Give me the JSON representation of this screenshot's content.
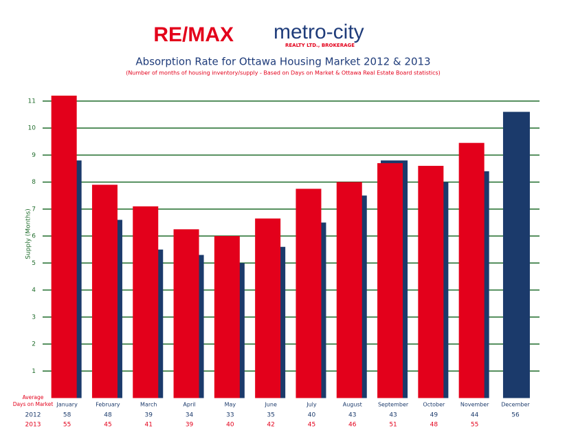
{
  "logo": {
    "brand": "RE/MAX",
    "name": "metro-city",
    "tagline": "REALTY LTD., BROKERAGE"
  },
  "chart_data": {
    "type": "bar",
    "title": "Absorption Rate for Ottawa Housing Market 2012 & 2013",
    "subtitle": "(Number of months of housing inventory/supply - Based on Days on Market & Ottawa Real Estate Board statistics)",
    "y_label": "Supply (Months)",
    "categories": [
      "January",
      "February",
      "March",
      "April",
      "May",
      "June",
      "July",
      "August",
      "September",
      "October",
      "November",
      "December"
    ],
    "series": [
      {
        "name": "2012",
        "color": "#1b3a6b",
        "values": [
          8.8,
          6.6,
          5.5,
          5.3,
          5.0,
          5.6,
          6.5,
          7.5,
          8.8,
          8.0,
          8.4,
          10.6
        ]
      },
      {
        "name": "2013",
        "color": "#e3001b",
        "values": [
          11.2,
          7.9,
          7.1,
          6.25,
          6.0,
          6.65,
          7.75,
          8.0,
          8.7,
          8.6,
          9.45,
          null
        ]
      }
    ],
    "ylim": [
      0,
      11.2
    ],
    "yticks": [
      1,
      2,
      3,
      4,
      5,
      6,
      7,
      8,
      9,
      10,
      11
    ],
    "grid": true,
    "grid_color": "#1e6b2a",
    "table": {
      "title_lines": [
        "Average",
        "Days on Market"
      ],
      "rows": [
        {
          "label": "2012",
          "color": "#1b3a6b",
          "values": [
            "58",
            "48",
            "39",
            "34",
            "33",
            "35",
            "40",
            "43",
            "43",
            "49",
            "44",
            "56"
          ]
        },
        {
          "label": "2013",
          "color": "#e3001b",
          "values": [
            "55",
            "45",
            "41",
            "39",
            "40",
            "42",
            "45",
            "46",
            "51",
            "48",
            "55",
            null
          ]
        }
      ]
    }
  }
}
